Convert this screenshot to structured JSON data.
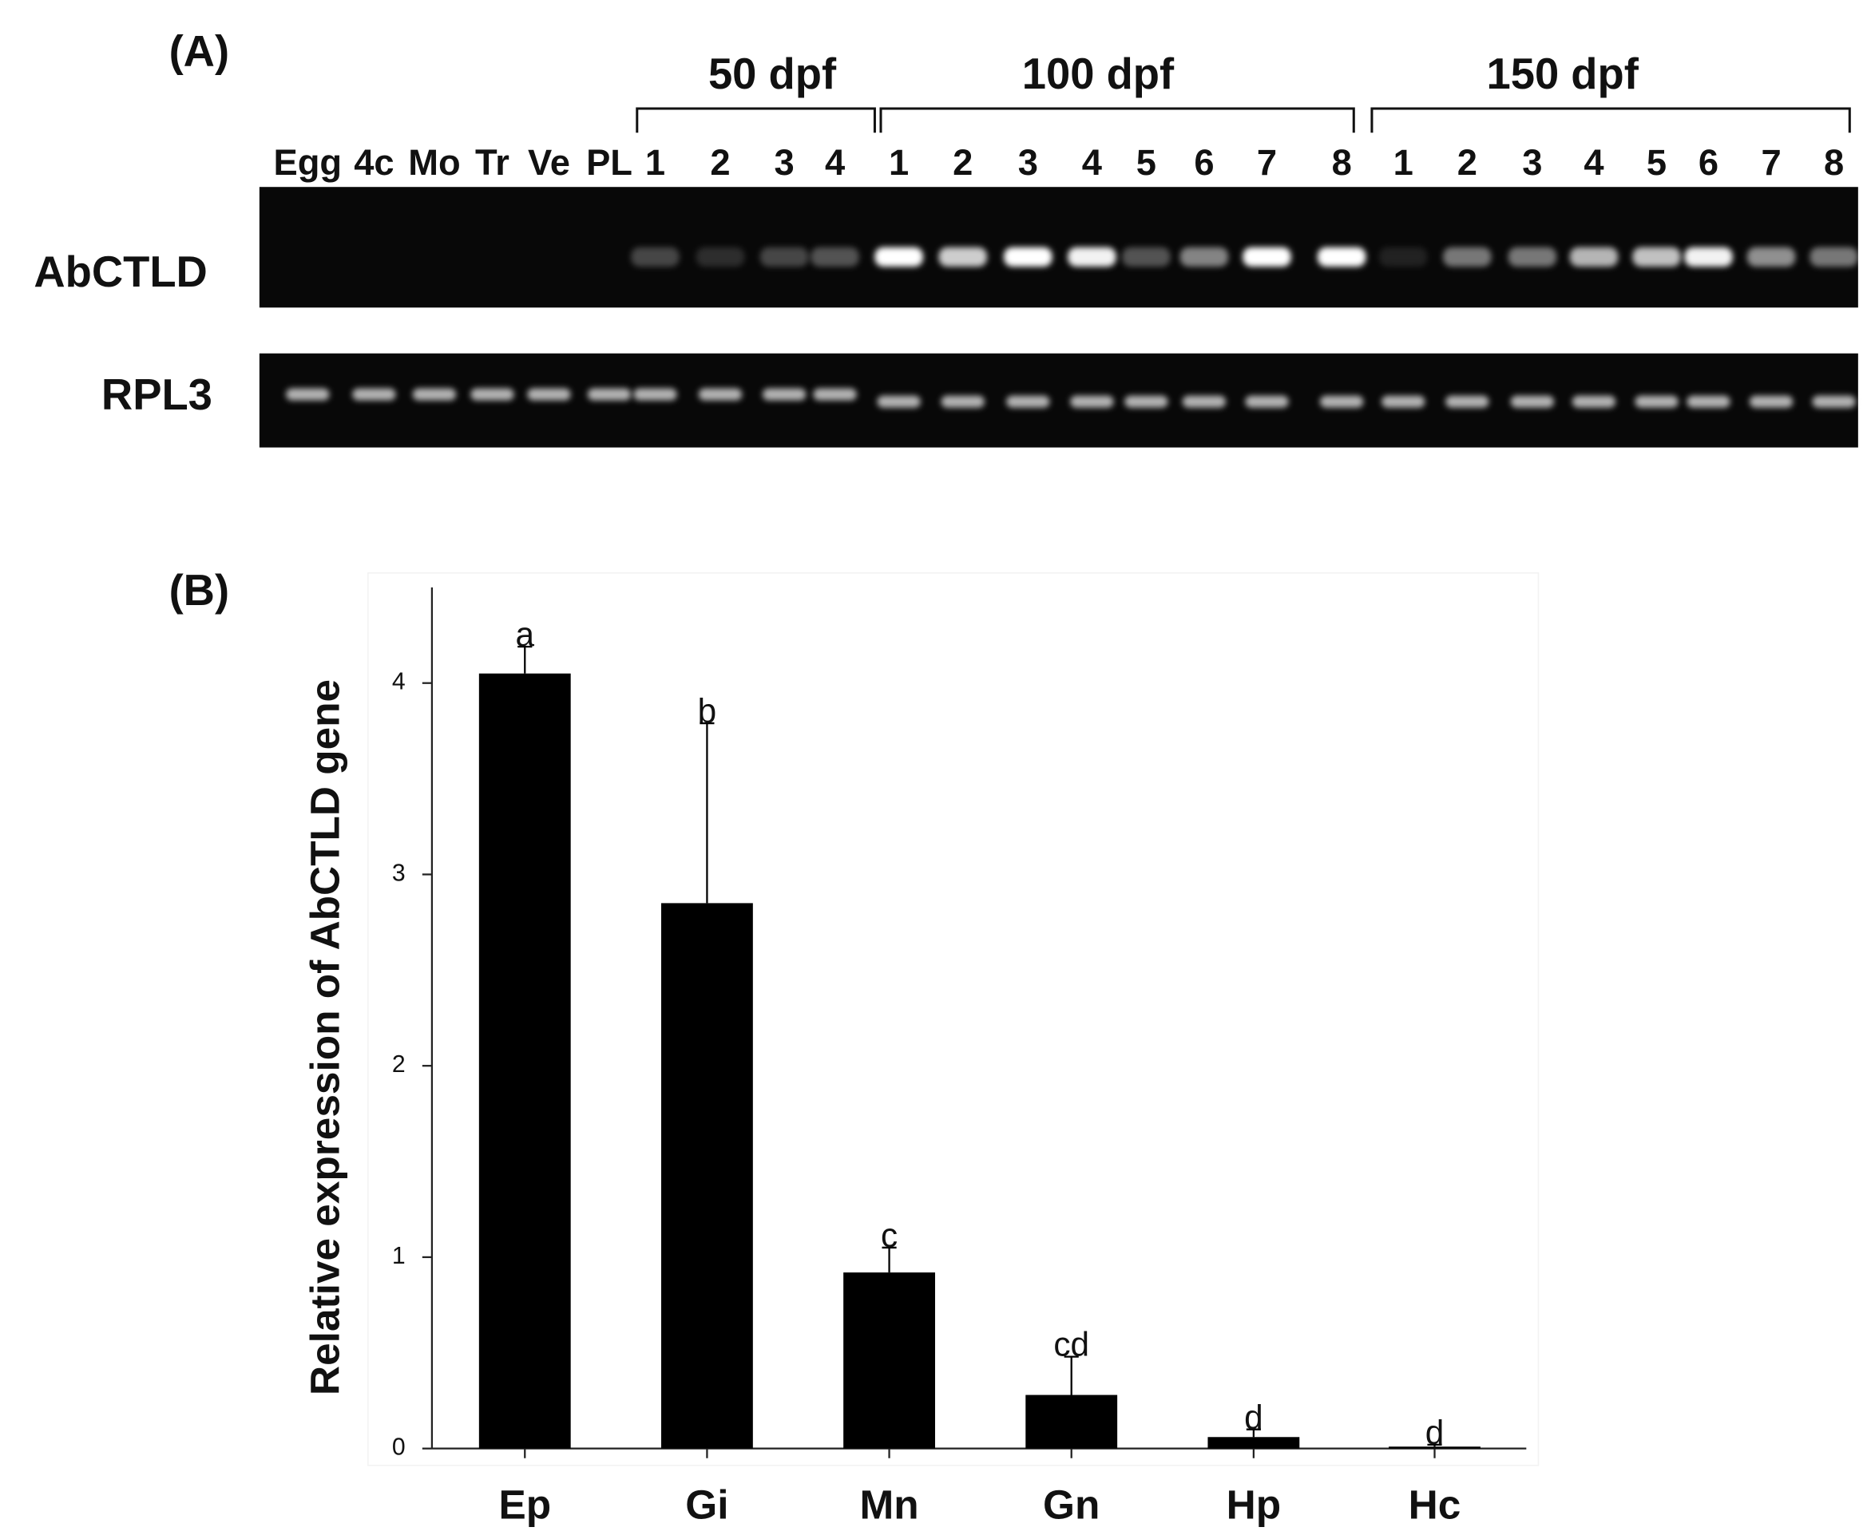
{
  "panel_a": {
    "label": "(A)",
    "groups": [
      "50 dpf",
      "100 dpf",
      "150 dpf"
    ],
    "lanes": [
      "Egg",
      "4c",
      "Mo",
      "Tr",
      "Ve",
      "PL",
      "1",
      "2",
      "3",
      "4",
      "1",
      "2",
      "3",
      "4",
      "5",
      "6",
      "7",
      "8",
      "1",
      "2",
      "3",
      "4",
      "5",
      "6",
      "7",
      "8"
    ],
    "rows": [
      "AbCTLD",
      "RPL3"
    ]
  },
  "chart_data": {
    "type": "bar",
    "panel_label": "(B)",
    "y_label": "Relative expression of AbCTLD gene",
    "categories": [
      "Ep",
      "Gi",
      "Mn",
      "Gn",
      "Hp",
      "Hc"
    ],
    "values": [
      4.05,
      2.85,
      0.92,
      0.28,
      0.06,
      0.01
    ],
    "errors": [
      0.14,
      0.94,
      0.13,
      0.2,
      0.04,
      0.01
    ],
    "annotations": [
      "a",
      "b",
      "c",
      "cd",
      "d",
      "d"
    ],
    "color": "#000000",
    "ylim": [
      0,
      4.5
    ],
    "yticks": [
      0,
      1,
      2,
      3,
      4
    ]
  }
}
